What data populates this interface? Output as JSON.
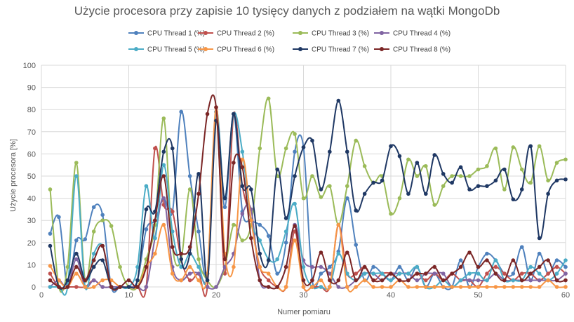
{
  "chart_data": {
    "type": "line",
    "title": "Użycie procesora przy zapisie 10 tysięcy danych z podziałem na wątki MongoDb",
    "xlabel": "Numer pomiaru",
    "ylabel": "Użycie procesora [%]",
    "xlim": [
      0,
      60
    ],
    "ylim": [
      0,
      100
    ],
    "xticks": [
      0,
      10,
      20,
      30,
      40,
      50,
      60
    ],
    "yticks": [
      0,
      10,
      20,
      30,
      40,
      50,
      60,
      70,
      80,
      90,
      100
    ],
    "grid": "vertical-and-horizontal",
    "legend_position": "top",
    "smooth": true,
    "x": [
      1,
      2,
      3,
      4,
      5,
      6,
      7,
      8,
      9,
      10,
      11,
      12,
      13,
      14,
      15,
      16,
      17,
      18,
      19,
      20,
      21,
      22,
      23,
      24,
      25,
      26,
      27,
      28,
      29,
      30,
      31,
      32,
      33,
      34,
      35,
      36,
      37,
      38,
      39,
      40,
      41,
      42,
      43,
      44,
      45,
      46,
      47,
      48,
      49,
      50,
      51,
      52,
      53,
      54,
      55,
      56,
      57,
      58,
      59,
      60
    ],
    "series": [
      {
        "name": "CPU Thread 1 (%)",
        "color": "#4f81bd",
        "values": [
          24,
          31.5,
          0,
          21,
          21.5,
          36,
          32.5,
          0,
          0,
          0,
          3,
          26,
          30,
          40,
          34,
          79,
          50,
          25,
          6,
          75,
          36,
          78,
          34,
          30,
          28,
          23,
          6,
          20,
          61,
          63,
          3,
          6,
          9,
          16,
          40,
          19,
          3,
          9,
          6,
          3,
          9,
          3,
          9,
          0,
          6,
          0,
          0,
          12,
          0,
          9,
          15,
          12,
          6,
          6,
          18,
          3,
          15,
          6,
          12,
          9
        ]
      },
      {
        "name": "CPU Thread 2 (%)",
        "color": "#c0504d",
        "values": [
          6,
          0,
          0,
          0,
          0,
          3,
          0,
          0,
          0,
          0,
          0,
          0,
          62.5,
          37,
          34,
          12.5,
          3,
          6,
          0,
          79,
          6,
          78,
          45.5,
          30,
          9,
          3,
          0,
          0,
          25,
          0,
          0,
          0,
          0,
          28,
          6,
          6,
          9,
          3,
          6,
          6,
          3,
          3,
          6,
          3,
          6,
          3,
          6,
          3,
          3,
          0,
          6,
          9,
          6,
          3,
          6,
          6,
          3,
          6,
          9,
          6
        ]
      },
      {
        "name": "CPU Thread 3 (%)",
        "color": "#9bbb59",
        "values": [
          44,
          0,
          9,
          56,
          3,
          25,
          30,
          27.5,
          9,
          0,
          0,
          12.5,
          28,
          76,
          18,
          12.5,
          44,
          12.5,
          3,
          0,
          9,
          28,
          21,
          28,
          62.5,
          85,
          50,
          62.5,
          69,
          40,
          50,
          40.5,
          45.5,
          28,
          45.5,
          66,
          54.5,
          47,
          50,
          33,
          40,
          57.5,
          50,
          54.5,
          37,
          45.5,
          50,
          50,
          50,
          53,
          54.5,
          62.5,
          44,
          63,
          53,
          47,
          63.5,
          48,
          56,
          57.5
        ]
      },
      {
        "name": "CPU Thread 4 (%)",
        "color": "#8064a2",
        "values": [
          0,
          3,
          0,
          12.5,
          0,
          3,
          0,
          0,
          0,
          0,
          0,
          0,
          22,
          40,
          9,
          3,
          6,
          6,
          0,
          0,
          9,
          15,
          33,
          35,
          3,
          0,
          0,
          9,
          28,
          12,
          9,
          9,
          6,
          0,
          0,
          3,
          6,
          6,
          3,
          6,
          6,
          6,
          3,
          6,
          6,
          6,
          0,
          3,
          3,
          3,
          3,
          6,
          3,
          3,
          3,
          3,
          3,
          3,
          3,
          6
        ]
      },
      {
        "name": "CPU Thread 5 (%)",
        "color": "#4bacc6",
        "values": [
          0,
          0,
          0,
          50,
          0,
          15,
          18.5,
          0,
          0,
          0,
          9,
          45.5,
          22,
          55,
          25,
          9,
          15,
          9,
          6,
          79,
          40,
          78,
          61,
          30,
          21,
          12.5,
          12.5,
          25,
          37.5,
          9,
          0,
          0,
          0,
          15,
          6,
          3,
          6,
          6,
          6,
          3,
          6,
          6,
          9,
          0,
          0,
          3,
          0,
          3,
          6,
          6,
          3,
          12,
          3,
          3,
          3,
          9,
          6,
          3,
          6,
          12
        ]
      },
      {
        "name": "CPU Thread 6 (%)",
        "color": "#f79646",
        "values": [
          9.5,
          3,
          0,
          6,
          0,
          0,
          3,
          3,
          0,
          0,
          0,
          9,
          15,
          28,
          6,
          3,
          9,
          3,
          6,
          81,
          15,
          9,
          57.5,
          30,
          9,
          6,
          0,
          0,
          21,
          0,
          0,
          3,
          0,
          28,
          0,
          0,
          3,
          0,
          0,
          0,
          3,
          0,
          0,
          0,
          0,
          0,
          0,
          0,
          0,
          0,
          0,
          0,
          0,
          0,
          0,
          0,
          0,
          3,
          0,
          0
        ]
      },
      {
        "name": "CPU Thread 7 (%)",
        "color": "#1f3864",
        "values": [
          18.5,
          0,
          3,
          15,
          3,
          9,
          12,
          0,
          0,
          0,
          3,
          35,
          34,
          61,
          62.5,
          12.5,
          15,
          51,
          3,
          75,
          40,
          78,
          45.5,
          44,
          15,
          12,
          53,
          31,
          50,
          63,
          66,
          44,
          61,
          84,
          61,
          34.5,
          42,
          47,
          48,
          63.5,
          59,
          42,
          56,
          42,
          59.5,
          51,
          47,
          54,
          44,
          45.5,
          45.5,
          48,
          53,
          39.5,
          44,
          63.5,
          22,
          42,
          48,
          48.5
        ]
      },
      {
        "name": "CPU Thread 8 (%)",
        "color": "#7b2626",
        "values": [
          3,
          0,
          0,
          9,
          3,
          12,
          18.5,
          0,
          0,
          3,
          0,
          9,
          30,
          50,
          18,
          15,
          18,
          42,
          78,
          81,
          12.5,
          56,
          54,
          22,
          3,
          0,
          0,
          9,
          27.5,
          3,
          3,
          15.5,
          3,
          3,
          15.5,
          3,
          9,
          3,
          3,
          6,
          3,
          3,
          6,
          6,
          9,
          3,
          6,
          9,
          15.5,
          9,
          12,
          6,
          3,
          12,
          3,
          6,
          9,
          12,
          3,
          3
        ]
      }
    ]
  }
}
